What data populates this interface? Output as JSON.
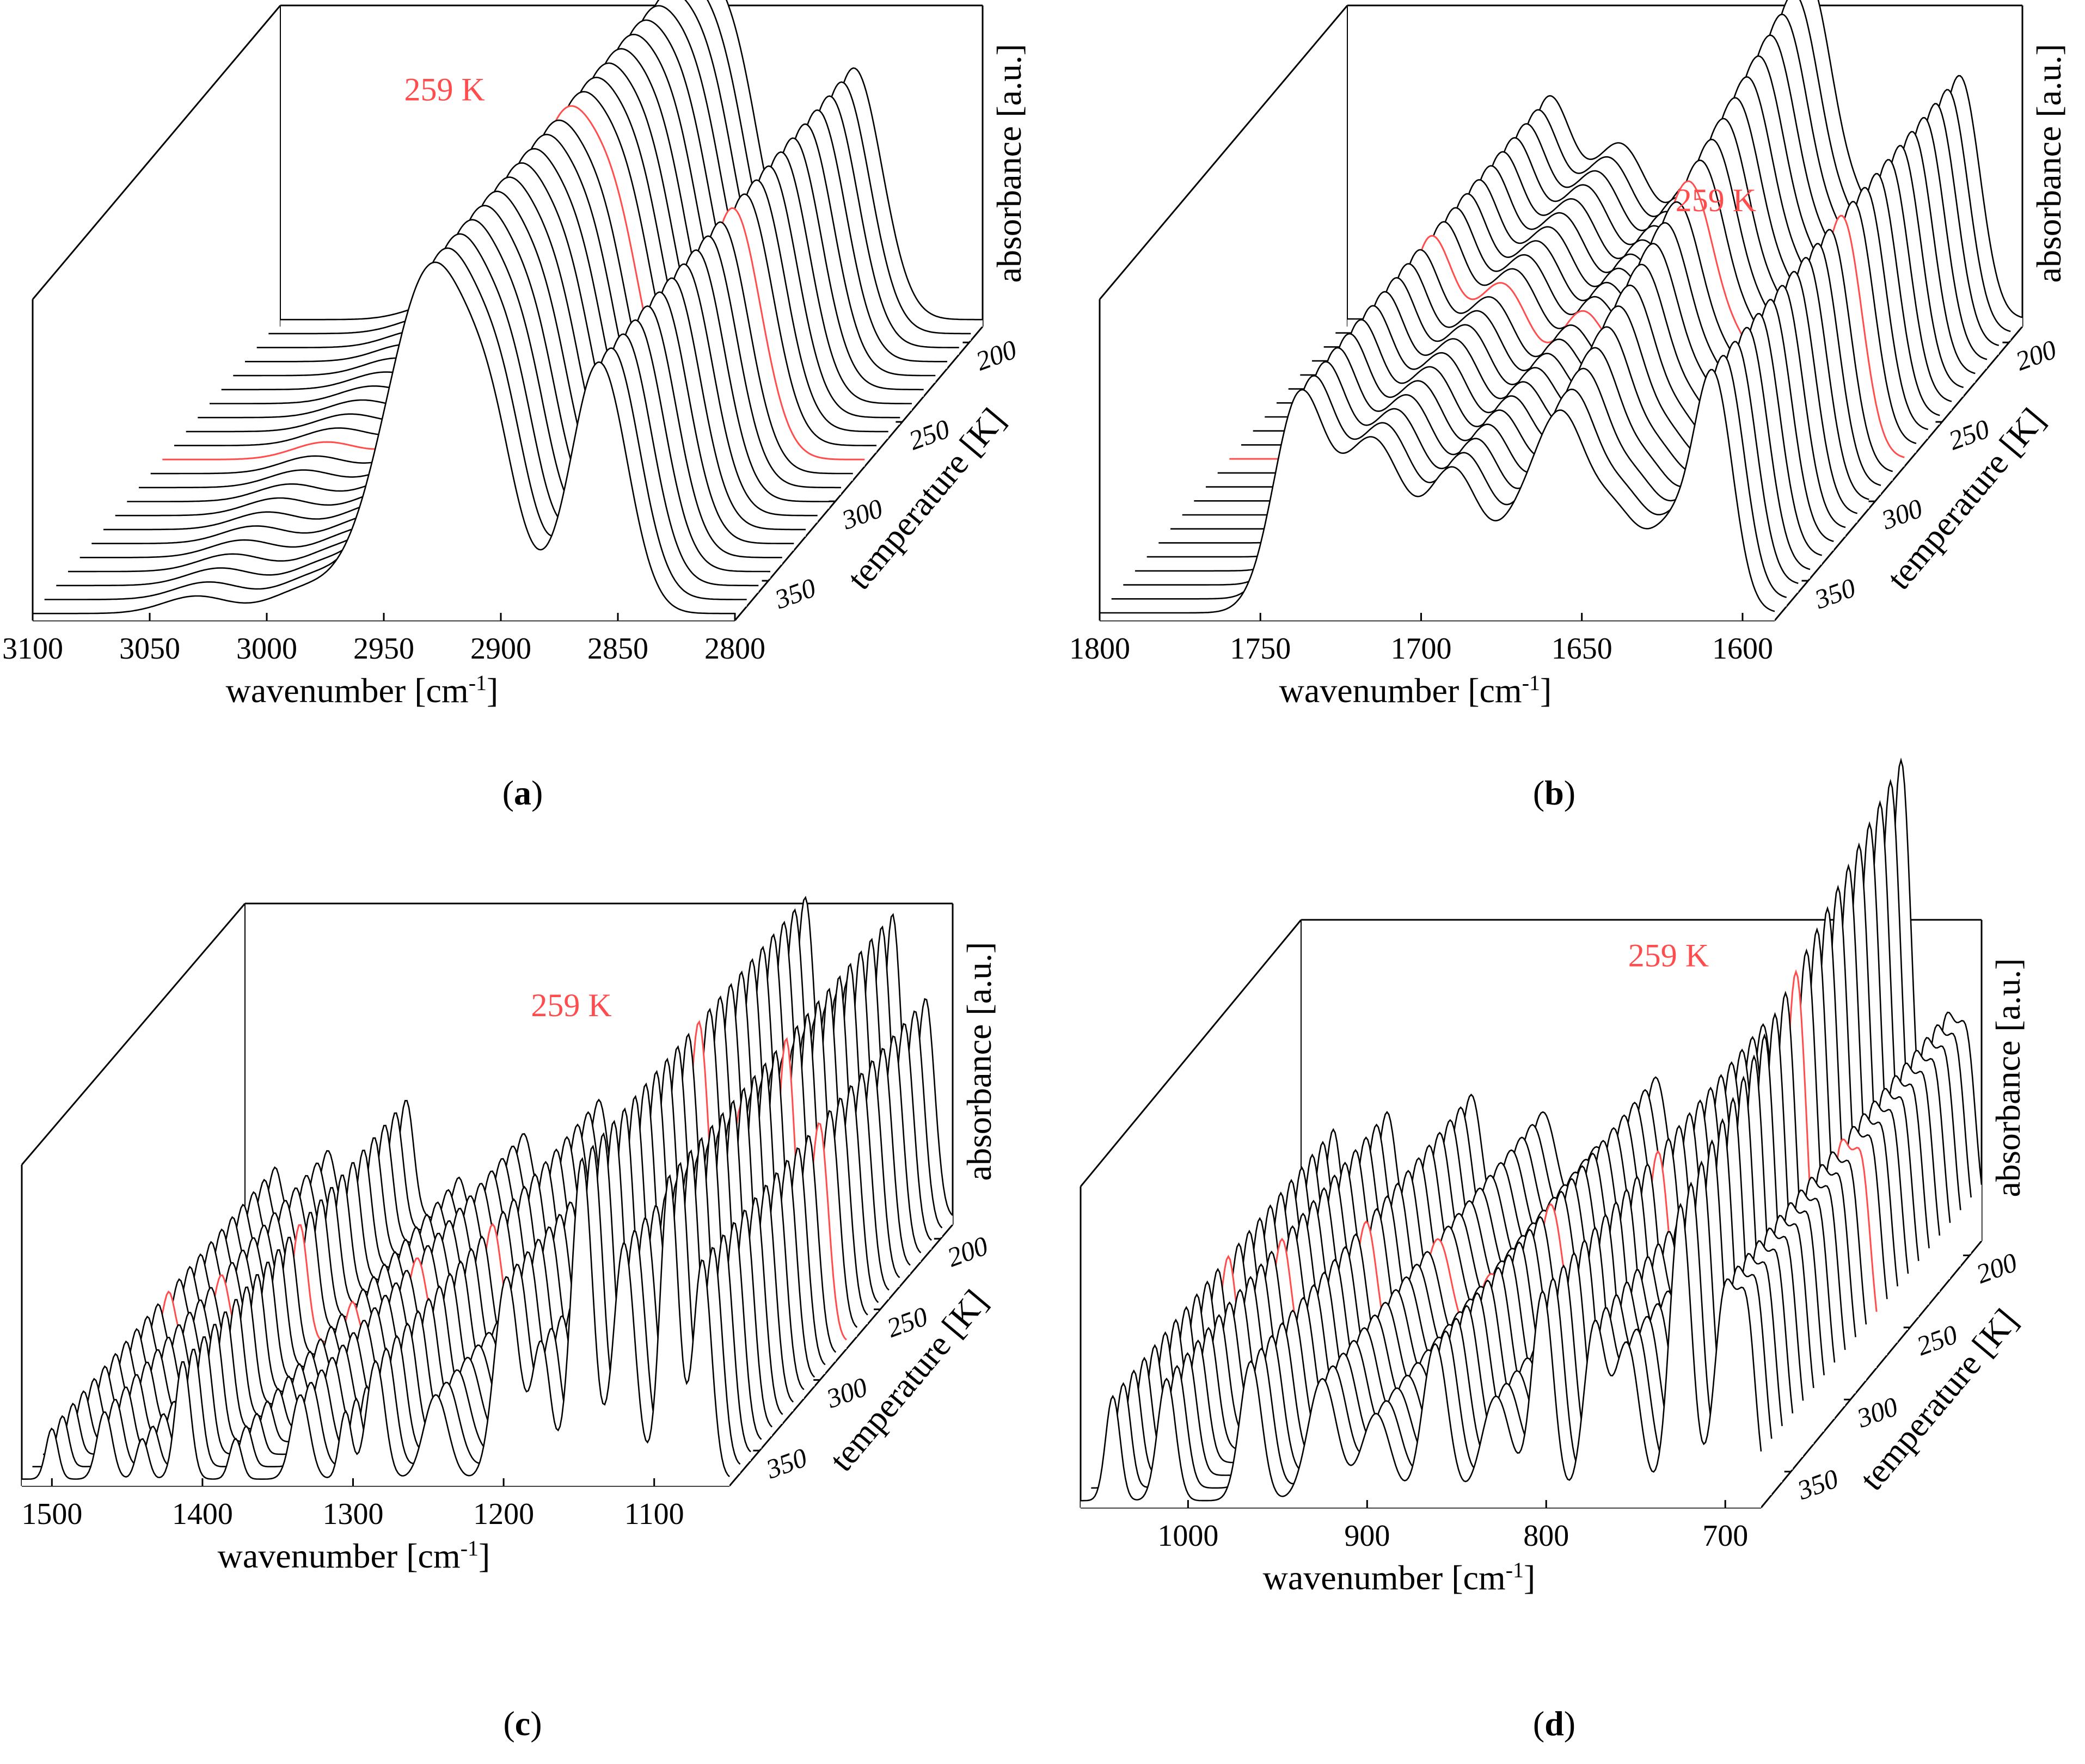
{
  "chart_data": [
    {
      "id": "a",
      "type": "waterfall-3d",
      "caption": "a",
      "x_range": [
        3100,
        2800
      ],
      "x_ticks": [
        "3100",
        "3050",
        "3000",
        "2950",
        "2900",
        "2850",
        "2800"
      ],
      "xlabel": "wavenumber [cm",
      "xlabel_sup": "-1",
      "xlabel_end": "]",
      "zlabel": "temperature [K]",
      "z_range": [
        190,
        375
      ],
      "z_ticks": [
        "200",
        "250",
        "300",
        "350"
      ],
      "ylabel": "absorbance [a.u.]",
      "n_spectra": 22,
      "highlight_index": 10,
      "highlight_label": "259 K",
      "highlight_color": "#ff4d4d",
      "line_color": "#000000",
      "peaks": [
        {
          "x": 3030,
          "h": 0.05,
          "w": 14
        },
        {
          "x": 2985,
          "h": 0.06,
          "w": 14
        },
        {
          "x": 2925,
          "h": 1.0,
          "w": 20,
          "shift": 4
        },
        {
          "x": 2903,
          "h": 0.22,
          "w": 10
        },
        {
          "x": 2855,
          "h": 0.72,
          "w": 12,
          "shift": 3
        }
      ]
    },
    {
      "id": "b",
      "type": "waterfall-3d",
      "caption": "b",
      "x_range": [
        1800,
        1590
      ],
      "x_ticks": [
        "1800",
        "1750",
        "1700",
        "1650",
        "1600"
      ],
      "xlabel": "wavenumber [cm",
      "xlabel_sup": "-1",
      "xlabel_end": "]",
      "zlabel": "temperature [K]",
      "z_range": [
        190,
        375
      ],
      "z_ticks": [
        "200",
        "250",
        "300",
        "350"
      ],
      "ylabel": "absorbance [a.u.]",
      "n_spectra": 22,
      "highlight_index": 10,
      "highlight_label": "259 K",
      "highlight_color": "#ff4d4d",
      "line_color": "#000000",
      "peaks": [
        {
          "x": 1738,
          "h": 0.55,
          "w": 8
        },
        {
          "x": 1715,
          "h": 0.45,
          "w": 10
        },
        {
          "x": 1690,
          "h": 0.35,
          "w": 8
        },
        {
          "x": 1665,
          "h": 0.3,
          "w": 10,
          "grow": 0.8
        },
        {
          "x": 1655,
          "h": 0.3,
          "w": 7,
          "grow": 0.7
        },
        {
          "x": 1640,
          "h": 0.25,
          "w": 8
        },
        {
          "x": 1622,
          "h": 0.2,
          "w": 7
        },
        {
          "x": 1609,
          "h": 0.6,
          "w": 6
        }
      ]
    },
    {
      "id": "c",
      "type": "waterfall-3d",
      "caption": "c",
      "x_range": [
        1520,
        1050
      ],
      "x_ticks": [
        "1500",
        "1400",
        "1300",
        "1200",
        "1100"
      ],
      "xlabel": "wavenumber [cm",
      "xlabel_sup": "-1",
      "xlabel_end": "]",
      "zlabel": "temperature [K]",
      "z_range": [
        190,
        375
      ],
      "z_ticks": [
        "200",
        "250",
        "300",
        "350"
      ],
      "ylabel": "absorbance [a.u.]",
      "n_spectra": 22,
      "highlight_index": 10,
      "highlight_label": "259 K",
      "highlight_color": "#ff4d4d",
      "line_color": "#000000",
      "peaks": [
        {
          "x": 1500,
          "h": 0.15,
          "w": 4
        },
        {
          "x": 1465,
          "h": 0.2,
          "w": 5
        },
        {
          "x": 1440,
          "h": 0.12,
          "w": 4
        },
        {
          "x": 1413,
          "h": 0.35,
          "w": 5
        },
        {
          "x": 1378,
          "h": 0.12,
          "w": 4
        },
        {
          "x": 1335,
          "h": 0.25,
          "w": 6
        },
        {
          "x": 1305,
          "h": 0.2,
          "w": 4
        },
        {
          "x": 1285,
          "h": 0.35,
          "w": 6
        },
        {
          "x": 1245,
          "h": 0.25,
          "w": 8
        },
        {
          "x": 1198,
          "h": 0.6,
          "w": 8
        },
        {
          "x": 1175,
          "h": 0.4,
          "w": 6
        },
        {
          "x": 1148,
          "h": 0.95,
          "w": 7
        },
        {
          "x": 1120,
          "h": 0.7,
          "w": 7
        },
        {
          "x": 1090,
          "h": 0.9,
          "w": 6
        },
        {
          "x": 1068,
          "h": 0.65,
          "w": 6
        }
      ]
    },
    {
      "id": "d",
      "type": "waterfall-3d",
      "caption": "d",
      "x_range": [
        1060,
        680
      ],
      "x_ticks": [
        "1000",
        "900",
        "800",
        "700"
      ],
      "xlabel": "wavenumber [cm",
      "xlabel_sup": "-1",
      "xlabel_end": "]",
      "zlabel": "temperature [K]",
      "z_range": [
        190,
        375
      ],
      "z_ticks": [
        "200",
        "250",
        "300",
        "350"
      ],
      "ylabel": "absorbance [a.u.]",
      "n_spectra": 22,
      "highlight_index": 10,
      "highlight_label": "259 K",
      "highlight_color": "#ff4d4d",
      "line_color": "#000000",
      "peaks": [
        {
          "x": 1042,
          "h": 0.3,
          "w": 4
        },
        {
          "x": 1012,
          "h": 0.35,
          "w": 5
        },
        {
          "x": 965,
          "h": 0.4,
          "w": 6
        },
        {
          "x": 925,
          "h": 0.35,
          "w": 8
        },
        {
          "x": 895,
          "h": 0.25,
          "w": 8
        },
        {
          "x": 862,
          "h": 0.45,
          "w": 7
        },
        {
          "x": 828,
          "h": 0.3,
          "w": 8
        },
        {
          "x": 802,
          "h": 0.6,
          "w": 6
        },
        {
          "x": 773,
          "h": 0.5,
          "w": 6
        },
        {
          "x": 755,
          "h": 0.45,
          "w": 7
        },
        {
          "x": 725,
          "h": 0.85,
          "w": 6,
          "grow": 0.6
        },
        {
          "x": 700,
          "h": 0.6,
          "w": 6
        },
        {
          "x": 688,
          "h": 0.5,
          "w": 5
        }
      ]
    }
  ]
}
